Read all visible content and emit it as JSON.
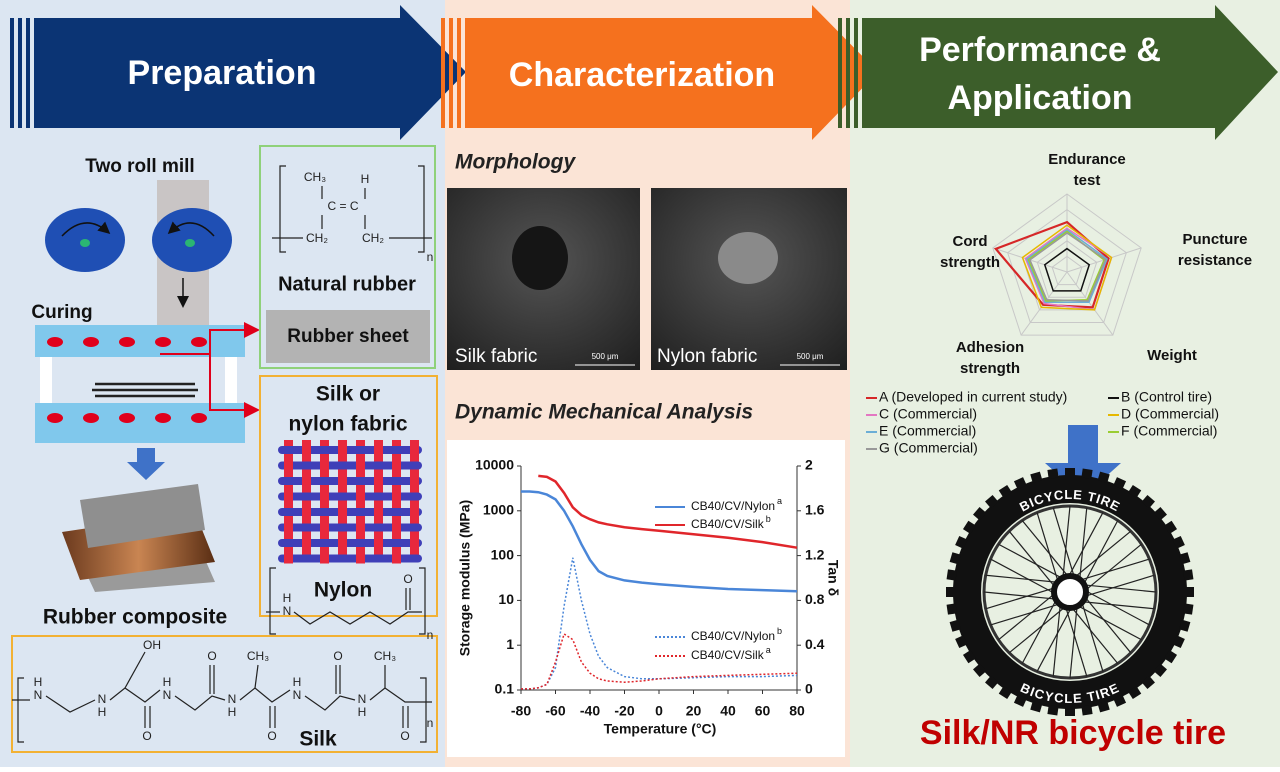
{
  "panels": [
    {
      "title_lines": [
        "Preparation"
      ]
    },
    {
      "title_lines": [
        "Characterization"
      ]
    },
    {
      "title_lines": [
        "Performance &",
        "Application"
      ]
    }
  ],
  "preparation": {
    "two_roll_mill": "Two roll mill",
    "curing": "Curing",
    "natural_rubber": {
      "label": "Natural rubber",
      "atoms": [
        "CH₃",
        "H",
        "C = C",
        "CH₂",
        "CH₂",
        "n"
      ]
    },
    "rubber_sheet": "Rubber sheet",
    "fabric_lines": [
      "Silk or",
      "nylon fabric"
    ],
    "nylon": {
      "label": "Nylon",
      "atoms": [
        "H",
        "N",
        "O",
        "n"
      ]
    },
    "rubber_composite": "Rubber composite",
    "silk": {
      "label": "Silk",
      "atoms": [
        "OH",
        "O",
        "CH₃",
        "O",
        "CH₃",
        "H",
        "N",
        "N",
        "H",
        "O",
        "H",
        "N",
        "N",
        "H",
        "O",
        "H",
        "N",
        "N",
        "H",
        "O",
        "n"
      ]
    }
  },
  "characterization": {
    "morphology": "Morphology",
    "images": [
      {
        "caption": "Silk fabric",
        "scale": "500 μm"
      },
      {
        "caption": "Nylon fabric",
        "scale": "500 μm"
      }
    ],
    "dma_title": "Dynamic Mechanical Analysis"
  },
  "dma_chart": {
    "type": "line",
    "x_label": "Temperature (°C)",
    "y_label": "Storage modulus (MPa)",
    "y2_label": "Tan δ",
    "x": [
      -80,
      -75,
      -70,
      -65,
      -60,
      -55,
      -50,
      -45,
      -40,
      -35,
      -30,
      -20,
      -10,
      0,
      20,
      40,
      60,
      80
    ],
    "xlim": [
      -80,
      80
    ],
    "xticks": [
      -80,
      -60,
      -40,
      -20,
      0,
      20,
      40,
      60,
      80
    ],
    "ylim": [
      0.1,
      10000
    ],
    "ylog": true,
    "yticks": [
      0.1,
      1,
      10,
      100,
      1000,
      10000
    ],
    "y2lim": [
      0,
      2
    ],
    "y2ticks": [
      0,
      0.4,
      0.8,
      1.2,
      1.6,
      2
    ],
    "series": [
      {
        "name": "CB40/CV/Nylon",
        "superscript": "a",
        "color": "#4a86d8",
        "style": "solid",
        "axis": "y",
        "values": [
          2700,
          2700,
          2600,
          2300,
          1800,
          1000,
          450,
          180,
          80,
          45,
          35,
          28,
          25,
          23,
          20,
          18,
          17,
          16
        ]
      },
      {
        "name": "CB40/CV/Silk",
        "superscript": "b",
        "color": "#e0262b",
        "style": "solid",
        "axis": "y",
        "values": [
          null,
          null,
          6000,
          5700,
          4500,
          2500,
          1200,
          800,
          650,
          550,
          500,
          430,
          390,
          360,
          300,
          250,
          200,
          150
        ]
      },
      {
        "name": "CB40/CV/Nylon",
        "superscript": "b",
        "color": "#4a86d8",
        "style": "dotted",
        "axis": "y2",
        "values": [
          0.01,
          0.01,
          0.02,
          0.05,
          0.2,
          0.75,
          1.18,
          0.8,
          0.5,
          0.3,
          0.2,
          0.12,
          0.1,
          0.1,
          0.11,
          0.12,
          0.12,
          0.13
        ]
      },
      {
        "name": "CB40/CV/Silk",
        "superscript": "a",
        "color": "#e0262b",
        "style": "dotted",
        "axis": "y2",
        "values": [
          0.01,
          0.01,
          0.02,
          0.05,
          0.25,
          0.5,
          0.45,
          0.25,
          0.15,
          0.1,
          0.08,
          0.07,
          0.08,
          0.1,
          0.12,
          0.13,
          0.14,
          0.15
        ]
      }
    ]
  },
  "radar_chart": {
    "type": "radar",
    "axes": [
      [
        "Endurance",
        "test"
      ],
      [
        "Puncture",
        "resistance"
      ],
      [
        "Weight"
      ],
      [
        "Adhesion",
        "strength"
      ],
      [
        "Cord",
        "strength"
      ]
    ],
    "rlim": [
      0,
      5
    ],
    "rticks": [
      1,
      2,
      3,
      4,
      5
    ],
    "series": [
      {
        "name": "A (Developed in current study)",
        "color": "#d62728",
        "values": [
          3.2,
          2.8,
          2.8,
          2.6,
          4.8
        ]
      },
      {
        "name": "B (Control tire)",
        "color": "#111111",
        "values": [
          1.5,
          1.5,
          1.5,
          1.5,
          1.5
        ]
      },
      {
        "name": "C (Commercial)",
        "color": "#e377c2",
        "values": [
          2.8,
          3.0,
          3.0,
          2.5,
          2.8
        ]
      },
      {
        "name": "D (Commercial)",
        "color": "#e6b800",
        "values": [
          3.0,
          3.0,
          3.0,
          2.8,
          3.0
        ]
      },
      {
        "name": "E (Commercial)",
        "color": "#6baed6",
        "values": [
          2.7,
          2.7,
          2.4,
          2.4,
          2.7
        ]
      },
      {
        "name": "F (Commercial)",
        "color": "#9acd32",
        "values": [
          2.6,
          2.5,
          2.2,
          2.3,
          2.6
        ]
      },
      {
        "name": "G (Commercial)",
        "color": "#999999",
        "values": [
          2.5,
          2.6,
          2.3,
          2.2,
          2.5
        ]
      }
    ]
  },
  "application": {
    "tire_text": [
      "BICYCLE TIRE",
      "BICYCLE TIRE"
    ],
    "title": "Silk/NR bicycle tire"
  }
}
